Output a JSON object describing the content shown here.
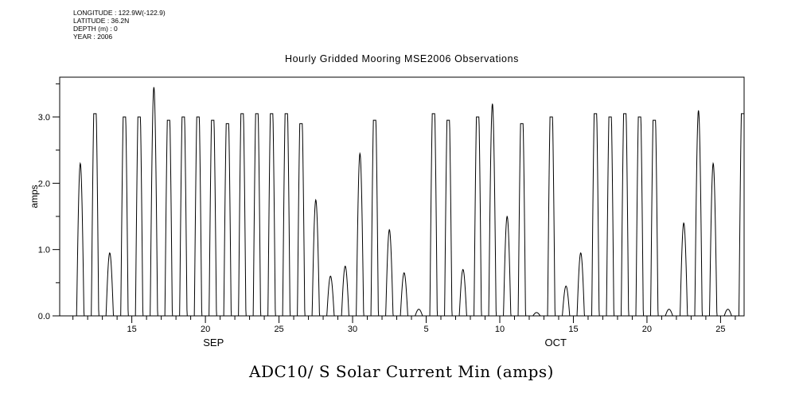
{
  "metadata": {
    "lines": [
      "LONGITUDE : 122.9W(-122.9)",
      "LATITUDE : 36.2N",
      "DEPTH (m) : 0",
      "YEAR : 2006"
    ]
  },
  "bottom_title": "ADC10/ S Solar Current Min (amps)",
  "colors": {
    "line": "#000000",
    "background": "#ffffff",
    "text": "#000000"
  },
  "chart_data": {
    "type": "line",
    "title": "Hourly Gridded Mooring MSE2006 Observations",
    "xlabel": "",
    "ylabel": "amps",
    "ylim": [
      0,
      3.6
    ],
    "yticks": [
      0,
      1,
      2,
      3
    ],
    "ytick_labels": [
      "0.0",
      "1.0",
      "2.0",
      "3.0"
    ],
    "y_minor_step": 0.5,
    "grid": false,
    "legend": "none",
    "x_axis": {
      "start": {
        "month": 9,
        "day": 10,
        "frac": 0.1
      },
      "end": {
        "month": 10,
        "day": 26,
        "frac": 0.6
      },
      "month_labels": [
        "SEP",
        "OCT"
      ],
      "major_ticks": [
        {
          "month": 9,
          "day": 15,
          "label": "15"
        },
        {
          "month": 9,
          "day": 20,
          "label": "20"
        },
        {
          "month": 9,
          "day": 25,
          "label": "25"
        },
        {
          "month": 9,
          "day": 30,
          "label": "30"
        },
        {
          "month": 10,
          "day": 5,
          "label": "5"
        },
        {
          "month": 10,
          "day": 10,
          "label": "10"
        },
        {
          "month": 10,
          "day": 15,
          "label": "15"
        },
        {
          "month": 10,
          "day": 20,
          "label": "20"
        },
        {
          "month": 10,
          "day": 25,
          "label": "25"
        }
      ]
    },
    "series": [
      {
        "name": "ADC10/S solar current min",
        "units": "amps",
        "sampling": "hourly daily solar cycle (0 at night, peak near local noon)",
        "daily_peaks": [
          {
            "date": "2006-09-11",
            "peak": 2.3
          },
          {
            "date": "2006-09-12",
            "peak": 3.05
          },
          {
            "date": "2006-09-13",
            "peak": 0.95
          },
          {
            "date": "2006-09-14",
            "peak": 3.0
          },
          {
            "date": "2006-09-15",
            "peak": 3.0
          },
          {
            "date": "2006-09-16",
            "peak": 3.45
          },
          {
            "date": "2006-09-17",
            "peak": 2.95
          },
          {
            "date": "2006-09-18",
            "peak": 3.0
          },
          {
            "date": "2006-09-19",
            "peak": 3.0
          },
          {
            "date": "2006-09-20",
            "peak": 2.95
          },
          {
            "date": "2006-09-21",
            "peak": 2.9
          },
          {
            "date": "2006-09-22",
            "peak": 3.05
          },
          {
            "date": "2006-09-23",
            "peak": 3.05
          },
          {
            "date": "2006-09-24",
            "peak": 3.05
          },
          {
            "date": "2006-09-25",
            "peak": 3.05
          },
          {
            "date": "2006-09-26",
            "peak": 2.9
          },
          {
            "date": "2006-09-27",
            "peak": 1.75
          },
          {
            "date": "2006-09-28",
            "peak": 0.6
          },
          {
            "date": "2006-09-29",
            "peak": 0.75
          },
          {
            "date": "2006-09-30",
            "peak": 2.45
          },
          {
            "date": "2006-10-01",
            "peak": 2.95
          },
          {
            "date": "2006-10-02",
            "peak": 1.3
          },
          {
            "date": "2006-10-03",
            "peak": 0.65
          },
          {
            "date": "2006-10-04",
            "peak": 0.1
          },
          {
            "date": "2006-10-05",
            "peak": 3.05
          },
          {
            "date": "2006-10-06",
            "peak": 2.95
          },
          {
            "date": "2006-10-07",
            "peak": 0.7
          },
          {
            "date": "2006-10-08",
            "peak": 3.0
          },
          {
            "date": "2006-10-09",
            "peak": 3.2
          },
          {
            "date": "2006-10-10",
            "peak": 1.5
          },
          {
            "date": "2006-10-11",
            "peak": 2.9
          },
          {
            "date": "2006-10-12",
            "peak": 0.05
          },
          {
            "date": "2006-10-13",
            "peak": 3.0
          },
          {
            "date": "2006-10-14",
            "peak": 0.45
          },
          {
            "date": "2006-10-15",
            "peak": 0.95
          },
          {
            "date": "2006-10-16",
            "peak": 3.05
          },
          {
            "date": "2006-10-17",
            "peak": 3.0
          },
          {
            "date": "2006-10-18",
            "peak": 3.05
          },
          {
            "date": "2006-10-19",
            "peak": 3.0
          },
          {
            "date": "2006-10-20",
            "peak": 2.95
          },
          {
            "date": "2006-10-21",
            "peak": 0.1
          },
          {
            "date": "2006-10-22",
            "peak": 1.4
          },
          {
            "date": "2006-10-23",
            "peak": 3.1
          },
          {
            "date": "2006-10-24",
            "peak": 2.3
          },
          {
            "date": "2006-10-25",
            "peak": 0.1
          },
          {
            "date": "2006-10-26",
            "peak": 3.05
          }
        ]
      }
    ]
  }
}
